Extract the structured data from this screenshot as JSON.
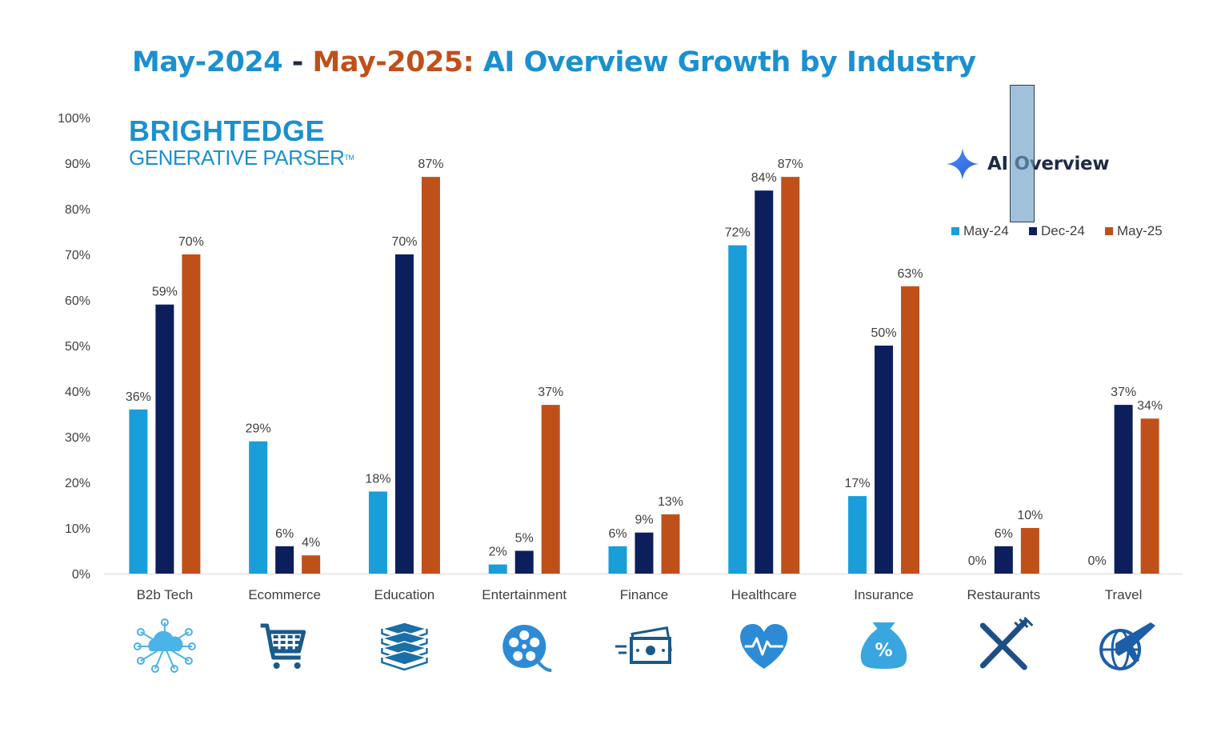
{
  "title": {
    "part1": "May-2024",
    "sep": " - ",
    "part2": "May-2025:",
    "rest": " AI Overview Growth by Industry",
    "color_blue": "#1b90d0",
    "color_orange": "#c0501a",
    "color_dark": "#1f2a44"
  },
  "brand": {
    "name": "BRIGHTEDGE",
    "sub": "GENERATIVE PARSER",
    "tm": "TM"
  },
  "ai_overview": {
    "icon": "sparkle-icon",
    "label": "AI Overview"
  },
  "chart_data": {
    "type": "bar",
    "title": "May-2024 - May-2025: AI Overview Growth by Industry",
    "xlabel": "",
    "ylabel": "",
    "ylim": [
      0,
      100
    ],
    "yticks": [
      "0%",
      "10%",
      "20%",
      "30%",
      "40%",
      "50%",
      "60%",
      "70%",
      "80%",
      "90%",
      "100%"
    ],
    "grid": false,
    "legend_position": "top-right",
    "categories": [
      "B2b Tech",
      "Ecommerce",
      "Education",
      "Entertainment",
      "Finance",
      "Healthcare",
      "Insurance",
      "Restaurants",
      "Travel"
    ],
    "category_icons": [
      "cloud-network-icon",
      "shopping-cart-icon",
      "books-icon",
      "film-reel-icon",
      "money-icon",
      "heart-pulse-icon",
      "money-bag-percent-icon",
      "fork-knife-icon",
      "globe-plane-icon"
    ],
    "series": [
      {
        "name": "May-24",
        "color": "#1a9ed9",
        "values": [
          36,
          29,
          18,
          2,
          6,
          72,
          17,
          0,
          0
        ],
        "labels": [
          "36%",
          "29%",
          "18%",
          "2%",
          "6%",
          "72%",
          "17%",
          "0%",
          "0%"
        ]
      },
      {
        "name": "Dec-24",
        "color": "#0c1f5c",
        "values": [
          59,
          6,
          70,
          5,
          9,
          84,
          50,
          6,
          37
        ],
        "labels": [
          "59%",
          "6%",
          "70%",
          "5%",
          "9%",
          "84%",
          "50%",
          "6%",
          "37%"
        ]
      },
      {
        "name": "May-25",
        "color": "#c0501a",
        "values": [
          70,
          4,
          87,
          37,
          13,
          87,
          63,
          10,
          34
        ],
        "labels": [
          "70%",
          "4%",
          "87%",
          "37%",
          "13%",
          "87%",
          "63%",
          "10%",
          "34%"
        ]
      }
    ]
  }
}
